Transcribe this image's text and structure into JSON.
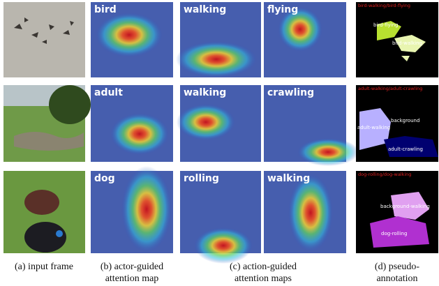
{
  "rows": [
    {
      "actor": "bird",
      "actions": [
        "walking",
        "flying"
      ],
      "pseudo_header": "bird-walking/bird-flying",
      "regions": [
        "bird-flying",
        "bird-walking"
      ]
    },
    {
      "actor": "adult",
      "actions": [
        "walking",
        "crawling"
      ],
      "pseudo_header": "adult-walking/adult-crawling",
      "regions": [
        "background",
        "adult-walking",
        "adult-crawling"
      ]
    },
    {
      "actor": "dog",
      "actions": [
        "rolling",
        "walking"
      ],
      "pseudo_header": "dog-rolling/dog-walking",
      "regions": [
        "background-walking",
        "dog-rolling"
      ]
    }
  ],
  "captions": [
    [
      "(a) input frame"
    ],
    [
      "(b) actor-guided",
      "attention map"
    ],
    [
      "(c) action-guided",
      "attention maps"
    ],
    [
      "(d) pseudo-",
      "annotation"
    ]
  ]
}
